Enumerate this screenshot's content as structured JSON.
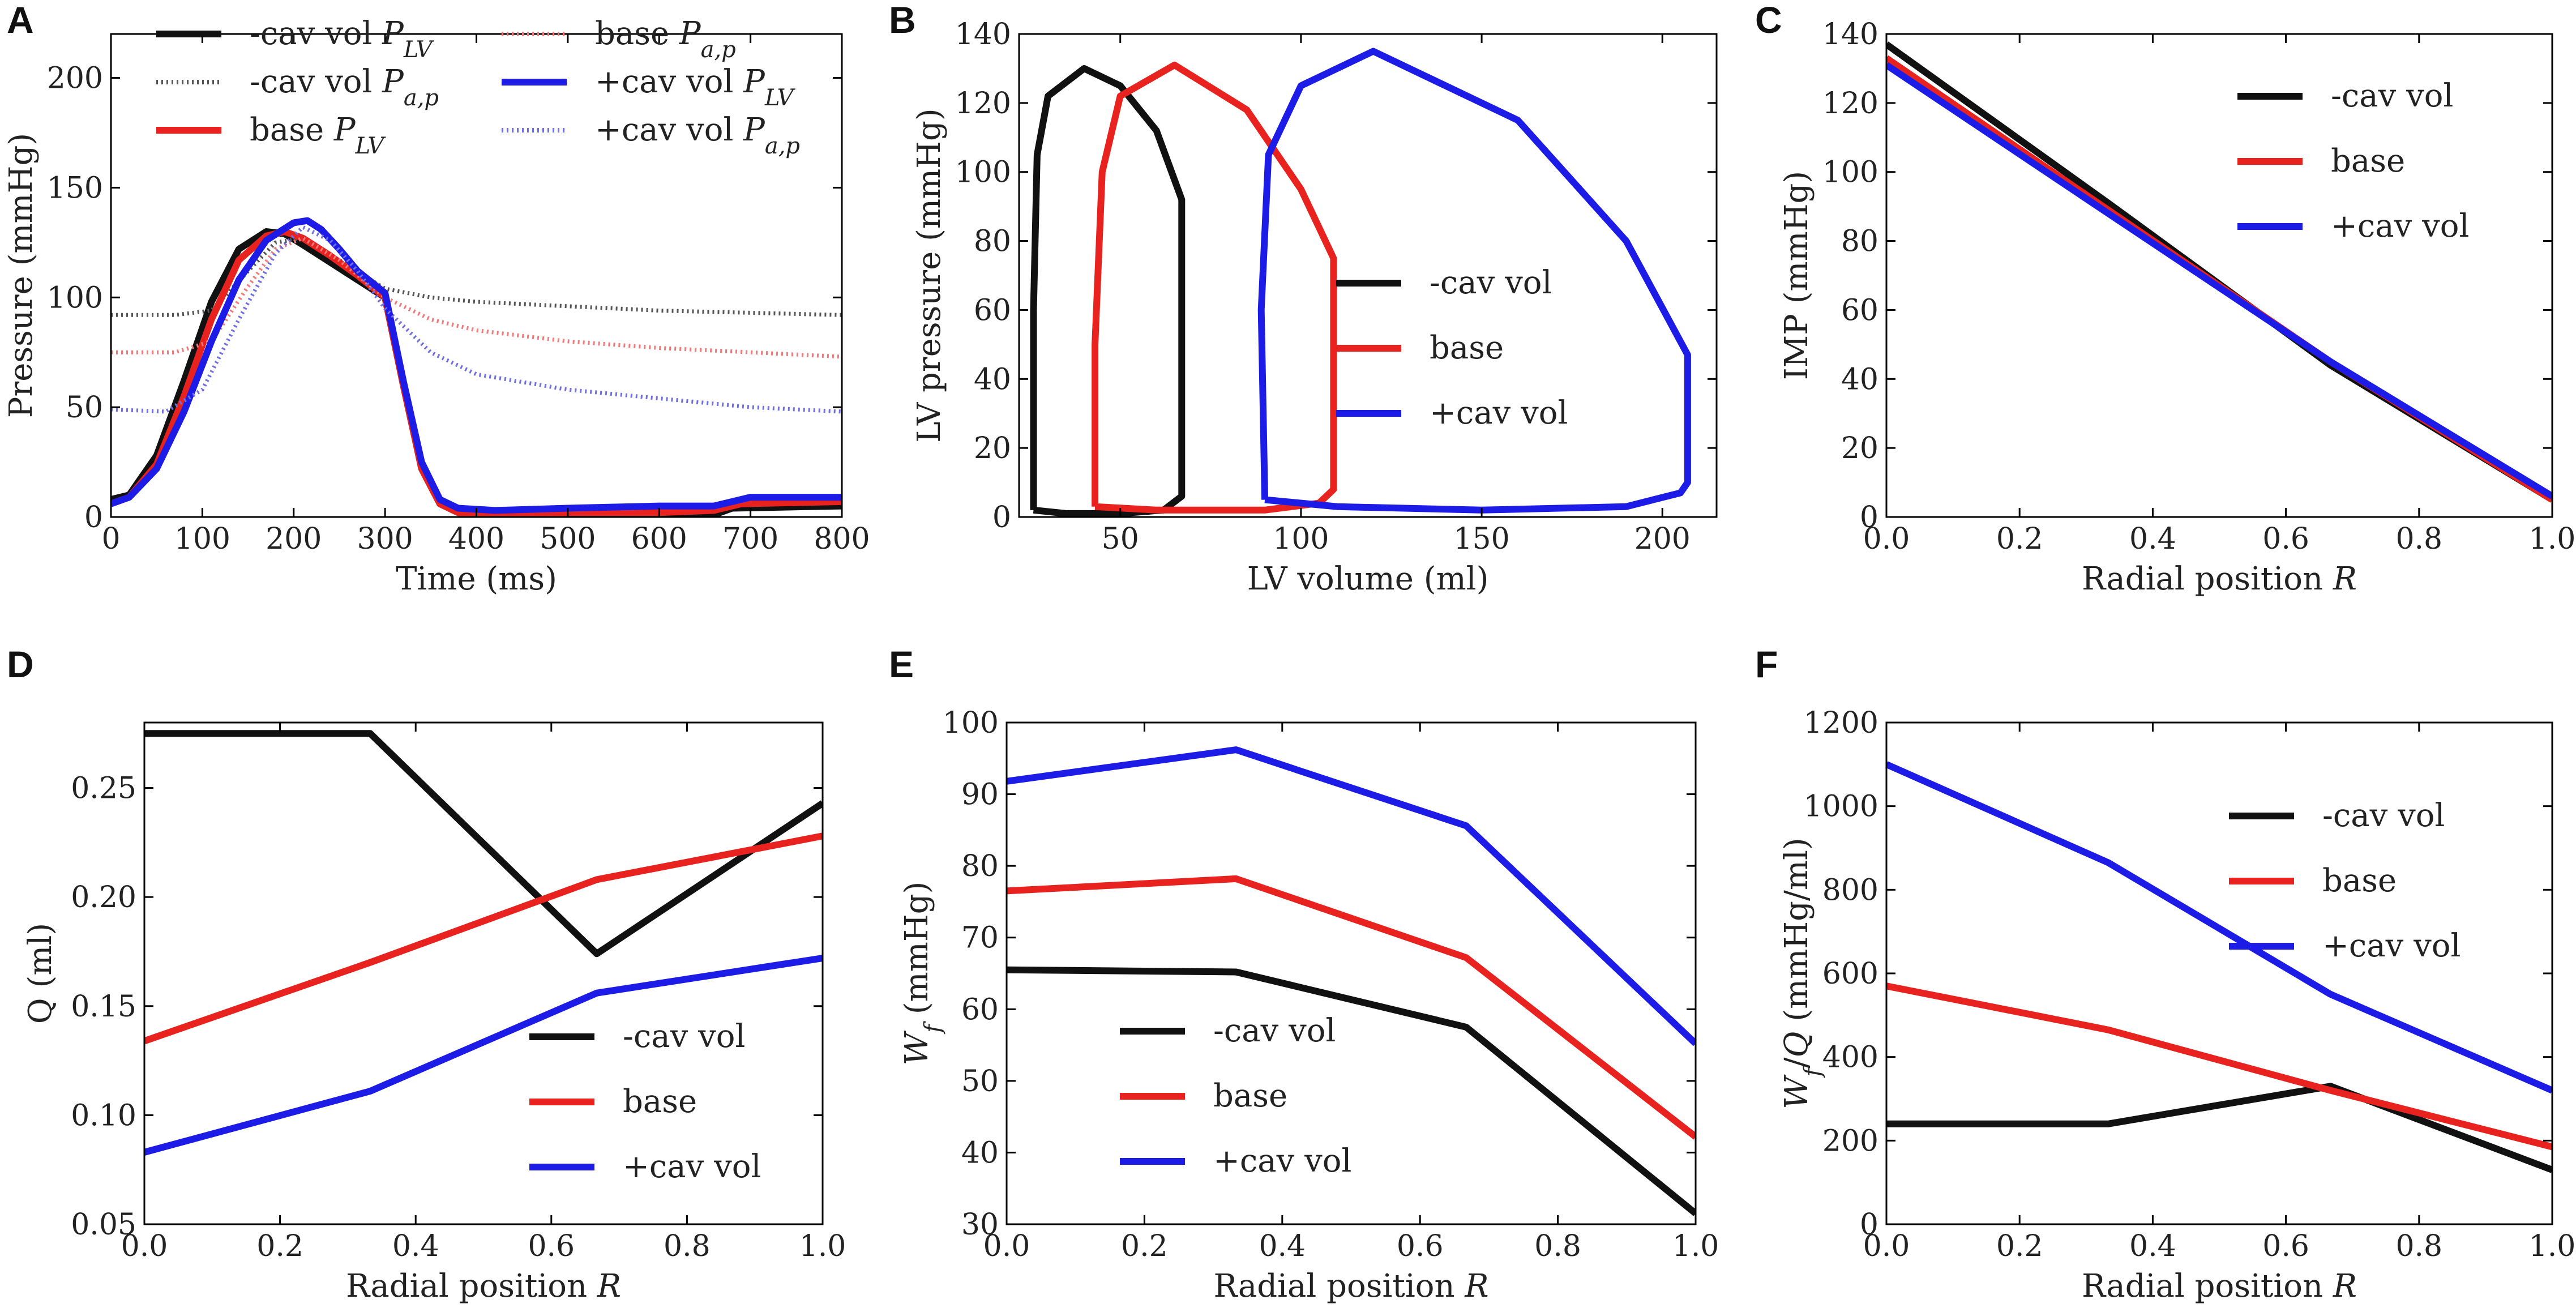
{
  "colors": {
    "black": "#111111",
    "red": "#e8231f",
    "blue": "#1c1ce6",
    "gray_dot": "#555555",
    "red_dot": "#f07a7a",
    "blue_dot": "#6f6fe3"
  },
  "chart_data": [
    {
      "panel": "A",
      "type": "line",
      "xlabel": "Time (ms)",
      "ylabel": "Pressure (mmHg)",
      "xlim": [
        0,
        800
      ],
      "ylim": [
        0,
        220
      ],
      "xticks": [
        0,
        100,
        200,
        300,
        400,
        500,
        600,
        700,
        800
      ],
      "yticks": [
        0,
        50,
        100,
        150,
        200
      ],
      "legend_position": "top",
      "legend_columns": 2,
      "series": [
        {
          "name": "-cav vol",
          "sub": "LV",
          "color_key": "black",
          "dash": "solid",
          "x": [
            0,
            20,
            50,
            80,
            110,
            140,
            170,
            190,
            210,
            240,
            270,
            300,
            320,
            340,
            360,
            380,
            420,
            500,
            600,
            660,
            680,
            800
          ],
          "y": [
            8,
            10,
            28,
            62,
            98,
            122,
            130,
            129,
            124,
            116,
            108,
            100,
            60,
            22,
            6,
            2,
            1,
            1,
            1,
            1,
            4,
            5
          ]
        },
        {
          "name": "-cav vol",
          "sub": "a,p",
          "color_key": "gray_dot",
          "dash": "dotted",
          "x": [
            0,
            70,
            110,
            150,
            180,
            210,
            250,
            300,
            350,
            400,
            500,
            600,
            700,
            800
          ],
          "y": [
            92,
            92,
            94,
            112,
            125,
            127,
            117,
            104,
            100,
            98,
            96,
            94,
            93,
            92
          ]
        },
        {
          "name": "base",
          "sub": "LV",
          "color_key": "red",
          "dash": "solid",
          "x": [
            0,
            20,
            50,
            80,
            110,
            140,
            170,
            190,
            210,
            240,
            270,
            300,
            320,
            340,
            360,
            380,
            420,
            500,
            600,
            660,
            690,
            800
          ],
          "y": [
            6,
            9,
            24,
            55,
            90,
            117,
            128,
            130,
            127,
            119,
            110,
            100,
            60,
            22,
            6,
            2,
            1,
            2,
            2,
            3,
            6,
            7
          ]
        },
        {
          "name": "base",
          "sub": "a,p",
          "color_key": "red_dot",
          "dash": "dotted",
          "x": [
            0,
            70,
            110,
            150,
            180,
            210,
            250,
            300,
            350,
            400,
            500,
            600,
            700,
            800
          ],
          "y": [
            75,
            75,
            80,
            105,
            122,
            127,
            117,
            100,
            90,
            85,
            80,
            77,
            75,
            73
          ]
        },
        {
          "name": "+cav vol",
          "sub": "LV",
          "color_key": "blue",
          "dash": "solid",
          "x": [
            0,
            20,
            50,
            80,
            110,
            140,
            170,
            200,
            215,
            230,
            250,
            270,
            300,
            320,
            340,
            360,
            380,
            420,
            500,
            600,
            660,
            700,
            800
          ],
          "y": [
            6,
            9,
            22,
            48,
            80,
            108,
            126,
            134,
            135,
            131,
            122,
            112,
            102,
            62,
            25,
            8,
            4,
            3,
            4,
            5,
            5,
            9,
            9
          ]
        },
        {
          "name": "+cav vol",
          "sub": "a,p",
          "color_key": "blue_dot",
          "dash": "dotted",
          "x": [
            0,
            60,
            100,
            140,
            180,
            210,
            240,
            270,
            300,
            350,
            400,
            500,
            600,
            700,
            800
          ],
          "y": [
            49,
            48,
            58,
            90,
            120,
            132,
            126,
            112,
            95,
            75,
            65,
            58,
            54,
            50,
            48
          ]
        }
      ]
    },
    {
      "panel": "B",
      "type": "line",
      "xlabel": "LV volume (ml)",
      "ylabel": "LV pressure (mmHg)",
      "xlim": [
        22,
        215
      ],
      "ylim": [
        0,
        140
      ],
      "xticks": [
        50,
        100,
        150,
        200
      ],
      "yticks": [
        0,
        20,
        40,
        60,
        80,
        100,
        120,
        140
      ],
      "legend_position": "center-right",
      "series": [
        {
          "name": "-cav vol",
          "color_key": "black",
          "x": [
            26,
            35,
            50,
            62,
            67,
            67,
            60,
            50,
            40,
            30,
            27,
            26,
            26
          ],
          "y": [
            2,
            1,
            1,
            2,
            6,
            92,
            112,
            125,
            130,
            122,
            105,
            60,
            2
          ]
        },
        {
          "name": "base",
          "color_key": "red",
          "x": [
            43,
            60,
            90,
            105,
            109,
            109,
            100,
            85,
            65,
            50,
            45,
            43,
            43
          ],
          "y": [
            3,
            2,
            2,
            4,
            8,
            75,
            95,
            118,
            131,
            122,
            100,
            50,
            3
          ]
        },
        {
          "name": "+cav vol",
          "color_key": "blue",
          "x": [
            90,
            110,
            150,
            190,
            205,
            207,
            207,
            190,
            160,
            120,
            100,
            91,
            89,
            90
          ],
          "y": [
            5,
            3,
            2,
            3,
            7,
            10,
            47,
            80,
            115,
            135,
            125,
            105,
            60,
            5
          ]
        }
      ]
    },
    {
      "panel": "C",
      "type": "line",
      "xlabel": "Radial position R",
      "ylabel": "IMP (mmHg)",
      "xlim": [
        0,
        1
      ],
      "ylim": [
        0,
        140
      ],
      "xticks": [
        "0.0",
        "0.2",
        "0.4",
        "0.6",
        "0.8",
        "1.0"
      ],
      "yticks": [
        0,
        20,
        40,
        60,
        80,
        100,
        120,
        140
      ],
      "legend_position": "upper-right",
      "series": [
        {
          "name": "-cav vol",
          "color_key": "black",
          "x": [
            0,
            0.333,
            0.667,
            1.0
          ],
          "y": [
            137,
            91,
            44,
            5
          ]
        },
        {
          "name": "base",
          "color_key": "red",
          "x": [
            0,
            0.333,
            0.667,
            1.0
          ],
          "y": [
            133,
            89,
            45,
            5
          ]
        },
        {
          "name": "+cav vol",
          "color_key": "blue",
          "x": [
            0,
            0.333,
            0.667,
            1.0
          ],
          "y": [
            131,
            88,
            45,
            6
          ]
        }
      ]
    },
    {
      "panel": "D",
      "type": "line",
      "xlabel": "Radial position R",
      "ylabel": "Q (ml)",
      "xlim": [
        0,
        1
      ],
      "ylim": [
        0.05,
        0.28
      ],
      "xticks": [
        "0.0",
        "0.2",
        "0.4",
        "0.6",
        "0.8",
        "1.0"
      ],
      "yticks": [
        "0.05",
        "0.10",
        "0.15",
        "0.20",
        "0.25"
      ],
      "legend_position": "lower-right",
      "series": [
        {
          "name": "-cav vol",
          "color_key": "black",
          "x": [
            0,
            0.333,
            0.667,
            1.0
          ],
          "y": [
            0.275,
            0.275,
            0.174,
            0.243
          ]
        },
        {
          "name": "base",
          "color_key": "red",
          "x": [
            0,
            0.333,
            0.667,
            1.0
          ],
          "y": [
            0.134,
            0.17,
            0.208,
            0.228
          ]
        },
        {
          "name": "+cav vol",
          "color_key": "blue",
          "x": [
            0,
            0.333,
            0.667,
            1.0
          ],
          "y": [
            0.083,
            0.111,
            0.156,
            0.172
          ]
        }
      ]
    },
    {
      "panel": "E",
      "type": "line",
      "xlabel": "Radial position R",
      "ylabel": "W_f (mmHg)",
      "xlim": [
        0,
        1
      ],
      "ylim": [
        30,
        100
      ],
      "xticks": [
        "0.0",
        "0.2",
        "0.4",
        "0.6",
        "0.8",
        "1.0"
      ],
      "yticks": [
        30,
        40,
        50,
        60,
        70,
        80,
        90,
        100
      ],
      "legend_position": "lower-left",
      "series": [
        {
          "name": "-cav vol",
          "color_key": "black",
          "x": [
            0,
            0.333,
            0.667,
            1.0
          ],
          "y": [
            65.5,
            65.2,
            57.5,
            31.5
          ]
        },
        {
          "name": "base",
          "color_key": "red",
          "x": [
            0,
            0.333,
            0.667,
            1.0
          ],
          "y": [
            76.5,
            78.2,
            67.2,
            42.2
          ]
        },
        {
          "name": "+cav vol",
          "color_key": "blue",
          "x": [
            0,
            0.333,
            0.667,
            1.0
          ],
          "y": [
            91.8,
            96.2,
            85.6,
            55.2
          ]
        }
      ]
    },
    {
      "panel": "F",
      "type": "line",
      "xlabel": "Radial position R",
      "ylabel": "W_f/Q (mmHg/ml)",
      "xlim": [
        0,
        1
      ],
      "ylim": [
        0,
        1200
      ],
      "xticks": [
        "0.0",
        "0.2",
        "0.4",
        "0.6",
        "0.8",
        "1.0"
      ],
      "yticks": [
        0,
        200,
        400,
        600,
        800,
        1000,
        1200
      ],
      "legend_position": "upper-right",
      "series": [
        {
          "name": "-cav vol",
          "color_key": "black",
          "x": [
            0,
            0.333,
            0.667,
            1.0
          ],
          "y": [
            240,
            240,
            330,
            130
          ]
        },
        {
          "name": "base",
          "color_key": "red",
          "x": [
            0,
            0.333,
            0.667,
            1.0
          ],
          "y": [
            570,
            465,
            320,
            185
          ]
        },
        {
          "name": "+cav vol",
          "color_key": "blue",
          "x": [
            0,
            0.333,
            0.667,
            1.0
          ],
          "y": [
            1100,
            865,
            550,
            320
          ]
        }
      ]
    }
  ]
}
